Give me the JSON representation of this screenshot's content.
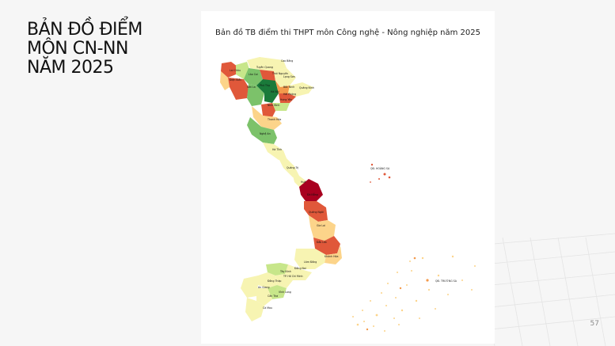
{
  "slide": {
    "title_lines": [
      "BẢN ĐỒ ĐIỂM",
      "MÔN CN-NN",
      "NĂM 2025"
    ],
    "page_number": "57"
  },
  "map": {
    "title": "Bản đồ TB điểm thi THPT môn Công nghệ - Nông nghiệp năm 2025",
    "province_labels": {
      "cao_bang": "Cao Bằng",
      "lai_chau": "Lai Châu",
      "tuyen_quang": "Tuyên Quang",
      "lao_cai": "Lào Cai",
      "thai_nguyen": "Thái Nguyên",
      "lang_son": "Lạng Sơn",
      "dien_bien": "Điện Biên",
      "phu_tho": "Phú Thọ",
      "bac_ninh": "Bắc Ninh",
      "quang_ninh": "Quảng Ninh",
      "son_la": "Sơn La",
      "ha_noi": "Hà Nội",
      "hai_phong": "Hải Phòng",
      "hung_yen": "Hưng Yên",
      "ninh_binh": "Ninh Bình",
      "thanh_hoa": "Thanh Hóa",
      "nghe_an": "Nghệ An",
      "ha_tinh": "Hà Tĩnh",
      "quang_tri": "Quảng Trị",
      "hue": "Huế",
      "da_nang": "Đà Nẵng",
      "quang_ngai": "Quảng Ngãi",
      "gia_lai": "Gia Lai",
      "dak_lak": "Đắk Lắk",
      "khanh_hoa": "Khánh Hòa",
      "lam_dong": "Lâm Đồng",
      "dong_nai": "Đồng Nai",
      "tay_ninh": "Tây Ninh",
      "hcm": "TP. Hồ Chí Minh",
      "dong_thap": "Đồng Tháp",
      "an_giang": "An Giang",
      "vinh_long": "Vĩnh Long",
      "can_tho": "Cần Thơ",
      "ca_mau": "Cà Mau"
    },
    "island_labels": {
      "hoang_sa": "QĐ. HOÀNG SA",
      "truong_sa": "QĐ. TRƯỜNG SA"
    }
  },
  "colors": {
    "dark_green": "#1a7a3a",
    "mid_green": "#7cc26a",
    "light_green": "#c7e68a",
    "pale_yellow": "#f7f4b2",
    "light_orange": "#fcd48a",
    "orange": "#f39a4c",
    "red_orange": "#e0583a",
    "dark_red": "#a8001f"
  }
}
